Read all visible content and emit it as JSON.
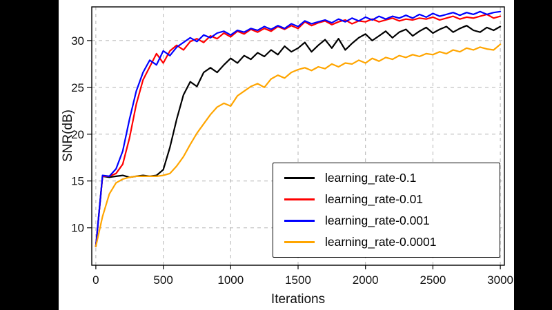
{
  "figure": {
    "background_color": "#000000",
    "plot_background_color": "#ffffff"
  },
  "chart_data": {
    "type": "line",
    "title": "",
    "xlabel": "Iterations",
    "ylabel": "SNR(dB)",
    "xlim": [
      -30,
      3030
    ],
    "ylim": [
      6,
      33.6
    ],
    "xticks": [
      0,
      500,
      1000,
      1500,
      2000,
      2500,
      3000
    ],
    "yticks": [
      10,
      15,
      20,
      25,
      30
    ],
    "grid": true,
    "grid_style": "dashed",
    "legend_position": "lower right",
    "x": [
      0,
      50,
      100,
      150,
      200,
      250,
      300,
      350,
      400,
      450,
      500,
      550,
      600,
      650,
      700,
      750,
      800,
      850,
      900,
      950,
      1000,
      1050,
      1100,
      1150,
      1200,
      1250,
      1300,
      1350,
      1400,
      1450,
      1500,
      1550,
      1600,
      1650,
      1700,
      1750,
      1800,
      1850,
      1900,
      1950,
      2000,
      2050,
      2100,
      2150,
      2200,
      2250,
      2300,
      2350,
      2400,
      2450,
      2500,
      2550,
      2600,
      2650,
      2700,
      2750,
      2800,
      2850,
      2900,
      2950,
      3000
    ],
    "series": [
      {
        "name": "learning_rate-0.1",
        "color": "#000000",
        "values": [
          8.0,
          15.5,
          15.4,
          15.5,
          15.6,
          15.4,
          15.5,
          15.6,
          15.5,
          15.6,
          16.2,
          18.6,
          21.6,
          24.2,
          25.6,
          25.1,
          26.6,
          27.1,
          26.6,
          27.4,
          28.1,
          27.6,
          28.4,
          28.0,
          28.7,
          28.3,
          29.0,
          28.5,
          29.4,
          28.8,
          29.2,
          29.8,
          28.8,
          29.5,
          30.1,
          29.2,
          30.2,
          29.0,
          29.7,
          30.3,
          30.7,
          30.0,
          30.5,
          31.0,
          30.3,
          30.9,
          31.2,
          30.5,
          31.0,
          31.4,
          30.8,
          31.2,
          31.5,
          30.9,
          31.3,
          31.6,
          31.1,
          30.9,
          31.4,
          31.1,
          31.5
        ]
      },
      {
        "name": "learning_rate-0.01",
        "color": "#ff0000",
        "values": [
          8.0,
          15.5,
          15.5,
          15.8,
          16.8,
          19.6,
          23.2,
          25.8,
          27.2,
          28.6,
          27.6,
          28.9,
          29.5,
          29.0,
          29.9,
          30.2,
          29.8,
          30.5,
          30.2,
          30.8,
          30.4,
          31.0,
          30.7,
          31.2,
          30.9,
          31.3,
          31.0,
          31.5,
          31.2,
          31.6,
          31.3,
          32.0,
          31.6,
          31.9,
          32.1,
          31.7,
          32.0,
          32.2,
          31.8,
          32.1,
          32.0,
          32.3,
          32.0,
          32.2,
          32.4,
          32.1,
          32.3,
          32.2,
          32.4,
          32.3,
          32.5,
          32.2,
          32.4,
          32.6,
          32.3,
          32.5,
          32.4,
          32.6,
          32.8,
          32.4,
          32.6
        ]
      },
      {
        "name": "learning_rate-0.001",
        "color": "#0000ff",
        "values": [
          8.0,
          15.6,
          15.5,
          16.3,
          18.2,
          21.6,
          24.6,
          26.6,
          27.9,
          27.4,
          28.9,
          28.4,
          29.3,
          29.8,
          30.3,
          29.9,
          30.6,
          30.3,
          30.8,
          31.0,
          30.6,
          31.1,
          30.9,
          31.3,
          31.1,
          31.5,
          31.2,
          31.6,
          31.3,
          31.8,
          31.5,
          32.1,
          31.8,
          32.0,
          32.2,
          31.9,
          32.3,
          32.0,
          32.4,
          32.1,
          32.5,
          32.2,
          32.6,
          32.3,
          32.6,
          32.4,
          32.7,
          32.4,
          32.8,
          32.5,
          32.9,
          32.6,
          32.8,
          33.0,
          32.7,
          33.0,
          32.8,
          33.1,
          32.8,
          33.0,
          33.1
        ]
      },
      {
        "name": "learning_rate-0.0001",
        "color": "#ffa500",
        "values": [
          8.0,
          11.2,
          13.6,
          14.8,
          15.2,
          15.4,
          15.5,
          15.5,
          15.5,
          15.5,
          15.6,
          15.8,
          16.6,
          17.6,
          18.9,
          20.1,
          21.1,
          22.1,
          22.9,
          23.3,
          23.0,
          24.1,
          24.6,
          25.1,
          25.4,
          25.0,
          25.9,
          26.3,
          26.0,
          26.6,
          26.9,
          27.1,
          26.8,
          27.2,
          27.0,
          27.5,
          27.2,
          27.6,
          27.5,
          27.9,
          27.6,
          28.1,
          27.8,
          28.2,
          28.0,
          28.4,
          28.2,
          28.5,
          28.3,
          28.6,
          28.5,
          28.8,
          28.6,
          29.0,
          28.8,
          29.2,
          29.0,
          29.3,
          29.1,
          29.0,
          29.6
        ]
      }
    ]
  }
}
